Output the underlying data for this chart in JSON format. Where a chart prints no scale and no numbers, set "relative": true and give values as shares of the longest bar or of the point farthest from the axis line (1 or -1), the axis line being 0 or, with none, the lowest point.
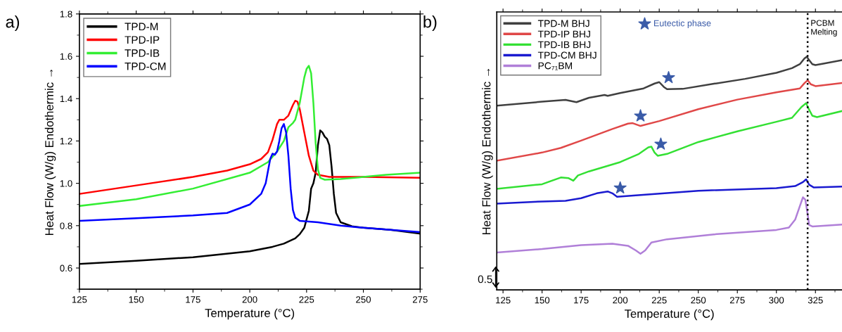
{
  "chart_data": [
    {
      "type": "line",
      "xlabel": "Temperature (°C)",
      "ylabel": "Heat Flow (W/g) Endothermic →",
      "annotations": [
        "a)"
      ],
      "xlim": [
        125,
        275
      ],
      "ylim": [
        0.5,
        1.8
      ],
      "xticks": [
        125,
        150,
        175,
        200,
        225,
        250,
        275
      ],
      "yticks": [
        0.6,
        0.8,
        {
          "value": 1.0,
          "label": "1.0"
        },
        1.2,
        1.4,
        1.6,
        1.8
      ],
      "legend": "top left",
      "series": [
        {
          "name": "TPD-M",
          "color": "#000000",
          "x": [
            125,
            150,
            175,
            200,
            210,
            215,
            220,
            222,
            224,
            226,
            227,
            228,
            229,
            230,
            231,
            232,
            233,
            234,
            235,
            236,
            237,
            238,
            240,
            245,
            250,
            262,
            275
          ],
          "values": [
            0.619,
            0.634,
            0.651,
            0.679,
            0.7,
            0.715,
            0.74,
            0.76,
            0.79,
            0.87,
            0.975,
            1.0,
            1.05,
            1.18,
            1.25,
            1.24,
            1.22,
            1.21,
            1.18,
            1.08,
            0.95,
            0.86,
            0.816,
            0.797,
            0.79,
            0.78,
            0.762
          ]
        },
        {
          "name": "TPD-IP",
          "color": "#ff0000",
          "x": [
            125,
            150,
            175,
            190,
            200,
            205,
            208,
            210,
            212,
            213,
            215,
            217,
            219,
            220,
            221,
            222,
            224,
            226,
            228,
            230,
            235,
            250,
            275
          ],
          "values": [
            0.95,
            0.99,
            1.03,
            1.06,
            1.09,
            1.115,
            1.147,
            1.205,
            1.28,
            1.3,
            1.3,
            1.32,
            1.37,
            1.39,
            1.385,
            1.35,
            1.24,
            1.13,
            1.06,
            1.04,
            1.03,
            1.03,
            1.026
          ]
        },
        {
          "name": "TPD-IB",
          "color": "#33ee33",
          "x": [
            125,
            150,
            175,
            200,
            208,
            212,
            215,
            217,
            219,
            220,
            222,
            224,
            225,
            226,
            227,
            228,
            229,
            230,
            231,
            233,
            240,
            250,
            260,
            275
          ],
          "values": [
            0.893,
            0.925,
            0.975,
            1.05,
            1.1,
            1.15,
            1.2,
            1.265,
            1.285,
            1.3,
            1.38,
            1.5,
            1.54,
            1.555,
            1.52,
            1.38,
            1.19,
            1.065,
            1.026,
            1.017,
            1.02,
            1.03,
            1.04,
            1.05
          ]
        },
        {
          "name": "TPD-CM",
          "color": "#0000ff",
          "x": [
            125,
            150,
            175,
            190,
            200,
            205,
            207,
            209,
            210,
            211,
            212,
            213,
            214,
            215,
            216,
            217,
            218,
            219,
            220,
            222,
            230,
            240,
            250,
            262,
            275
          ],
          "values": [
            0.823,
            0.835,
            0.848,
            0.86,
            0.9,
            0.95,
            1.0,
            1.115,
            1.14,
            1.135,
            1.15,
            1.2,
            1.26,
            1.28,
            1.24,
            1.13,
            0.975,
            0.874,
            0.838,
            0.823,
            0.816,
            0.8,
            0.79,
            0.78,
            0.77
          ]
        }
      ]
    },
    {
      "type": "line",
      "relative": true,
      "xlabel": "Temperature (°C)",
      "ylabel": "Heat Flow (W/g) Endothermic →",
      "annotations": [
        "b)",
        "0.5"
      ],
      "xlim": [
        121,
        342
      ],
      "xticks": [
        125,
        150,
        175,
        200,
        225,
        250,
        275,
        300,
        325
      ],
      "legend": "top left",
      "ref_lines": [
        {
          "axis": "x",
          "value": 320,
          "label": "PCBM\nMelting",
          "color": "#000000",
          "line_style": "dotted"
        }
      ],
      "series": [
        {
          "name": "TPD-M BHJ",
          "color": "#404040",
          "x": [
            121,
            150,
            165,
            172,
            180,
            190,
            192,
            200,
            215,
            222,
            225,
            228,
            230,
            240,
            260,
            280,
            300,
            310,
            315,
            318,
            319.5,
            321,
            323,
            325,
            330,
            342
          ],
          "values": [
            0.79,
            0.807,
            0.815,
            0.805,
            0.824,
            0.836,
            0.832,
            0.844,
            0.864,
            0.885,
            0.891,
            0.87,
            0.861,
            0.862,
            0.884,
            0.905,
            0.931,
            0.951,
            0.968,
            0.993,
            1,
            0.985,
            0.968,
            0.964,
            0.97,
            0.985
          ]
        },
        {
          "name": "TPD-IP BHJ",
          "color": "#e04848",
          "x": [
            121,
            150,
            162,
            175,
            195,
            205,
            208,
            213,
            225,
            250,
            275,
            300,
            315,
            318,
            320,
            322,
            325,
            342
          ],
          "values": [
            0.554,
            0.589,
            0.609,
            0.64,
            0.69,
            0.713,
            0.715,
            0.703,
            0.724,
            0.775,
            0.816,
            0.847,
            0.864,
            0.887,
            0.899,
            0.882,
            0.874,
            0.887
          ]
        },
        {
          "name": "TPD-IB BHJ",
          "color": "#33e033",
          "x": [
            121,
            150,
            162,
            167,
            170,
            173,
            180,
            200,
            212,
            218,
            220,
            222,
            224,
            230,
            250,
            275,
            300,
            310,
            316,
            319,
            321,
            323,
            326,
            342
          ],
          "values": [
            0.433,
            0.453,
            0.482,
            0.479,
            0.468,
            0.491,
            0.508,
            0.548,
            0.583,
            0.611,
            0.614,
            0.589,
            0.575,
            0.583,
            0.634,
            0.68,
            0.721,
            0.738,
            0.784,
            0.801,
            0.772,
            0.747,
            0.741,
            0.767
          ]
        },
        {
          "name": "TPD-CM BHJ",
          "color": "#1a1ad0",
          "x": [
            121,
            150,
            165,
            175,
            185,
            192,
            195,
            198,
            210,
            250,
            300,
            312,
            317,
            319,
            321,
            324,
            342
          ],
          "values": [
            0.37,
            0.379,
            0.382,
            0.393,
            0.414,
            0.422,
            0.414,
            0.399,
            0.405,
            0.425,
            0.436,
            0.445,
            0.462,
            0.474,
            0.451,
            0.439,
            0.443
          ]
        },
        {
          "name": "PC₇₁BM",
          "color": "#b07fd8",
          "x": [
            121,
            150,
            175,
            195,
            205,
            210,
            213,
            216,
            220,
            230,
            260,
            300,
            308,
            312,
            315,
            317,
            318.5,
            320,
            321,
            323,
            330,
            342
          ],
          "values": [
            0.16,
            0.175,
            0.192,
            0.198,
            0.189,
            0.169,
            0.155,
            0.169,
            0.203,
            0.217,
            0.238,
            0.257,
            0.267,
            0.301,
            0.359,
            0.397,
            0.387,
            0.324,
            0.278,
            0.272,
            0.275,
            0.28
          ]
        },
        {
          "name": "Eutectic phase",
          "type": "scatter",
          "marker": "star",
          "color": "#3a5ba8",
          "x": [
            231,
            213,
            226,
            200
          ],
          "values": [
            0.91,
            0.746,
            0.625,
            0.437
          ]
        }
      ]
    }
  ]
}
